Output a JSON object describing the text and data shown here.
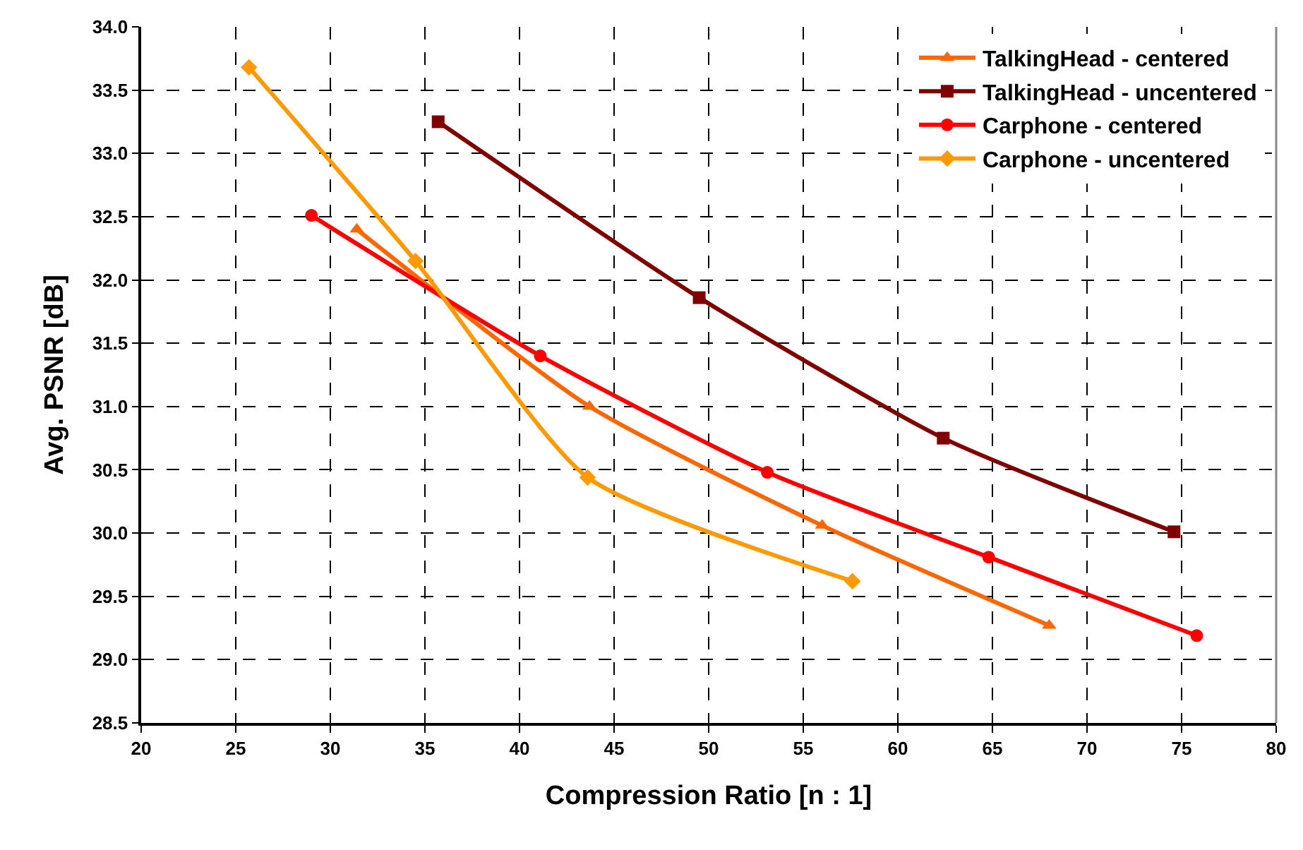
{
  "chart_data": {
    "type": "line",
    "xlabel": "Compression Ratio [n : 1]",
    "ylabel": "Avg. PSNR [dB]",
    "xlim": [
      20,
      80
    ],
    "xticks": [
      20,
      25,
      30,
      35,
      40,
      45,
      50,
      55,
      60,
      65,
      70,
      75,
      80
    ],
    "ylim": [
      28.5,
      34.0
    ],
    "yticks": [
      {
        "value": 28.5,
        "label": "28.5"
      },
      {
        "value": 29.0,
        "label": "29.0"
      },
      {
        "value": 29.5,
        "label": "29.5"
      },
      {
        "value": 30.0,
        "label": "30.0"
      },
      {
        "value": 30.5,
        "label": "30.5"
      },
      {
        "value": 31.0,
        "label": "31.0"
      },
      {
        "value": 31.5,
        "label": "31.5"
      },
      {
        "value": 32.0,
        "label": "32.0"
      },
      {
        "value": 32.5,
        "label": "32.5"
      },
      {
        "value": 33.0,
        "label": "33.0"
      },
      {
        "value": 33.5,
        "label": "33.5"
      },
      {
        "value": 34.0,
        "label": "34.0"
      }
    ],
    "grid": true,
    "legend": "top right",
    "line_style": "solid",
    "series": [
      {
        "name": "TalkingHead - centered",
        "color": "#ff6600",
        "marker": "triangle",
        "x": [
          31.4,
          43.7,
          56.0,
          68.0
        ],
        "values": [
          32.4,
          31.0,
          30.06,
          29.27
        ]
      },
      {
        "name": "TalkingHead - uncentered",
        "color": "#800000",
        "marker": "square",
        "x": [
          35.7,
          49.5,
          62.4,
          74.6
        ],
        "values": [
          33.25,
          31.86,
          30.75,
          30.01
        ]
      },
      {
        "name": "Carphone - centered",
        "color": "#ff0000",
        "marker": "circle",
        "x": [
          29.0,
          41.1,
          53.1,
          64.8,
          75.8
        ],
        "values": [
          32.51,
          31.4,
          30.48,
          29.81,
          29.19
        ]
      },
      {
        "name": "Carphone - uncentered",
        "color": "#ff9900",
        "marker": "diamond",
        "x": [
          25.7,
          34.5,
          43.6,
          57.6
        ],
        "values": [
          33.68,
          32.15,
          30.44,
          29.62
        ]
      }
    ]
  }
}
